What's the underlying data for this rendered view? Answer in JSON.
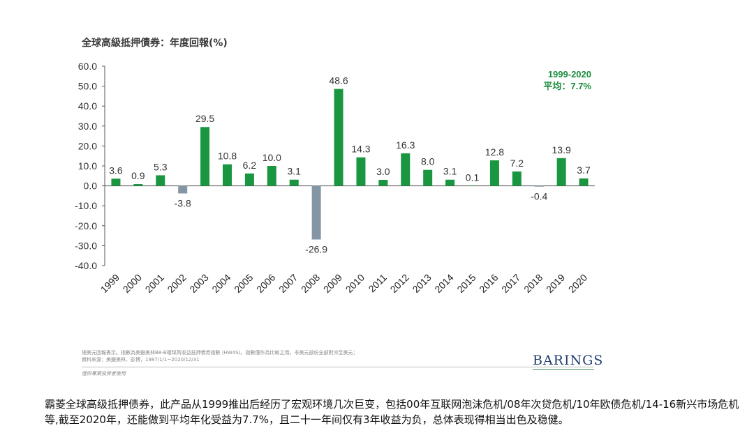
{
  "title": "全球高級抵押債券：年度回報(%)",
  "chart_data": {
    "type": "bar",
    "title": "全球高級抵押債券：年度回報(%)",
    "xlabel": "",
    "ylabel": "",
    "ylim": [
      -40,
      60
    ],
    "yticks": [
      "60.0",
      "50.0",
      "40.0",
      "30.0",
      "20.0",
      "10.0",
      "0.0",
      "-10.0",
      "-20.0",
      "-30.0",
      "-40.0"
    ],
    "ytick_values": [
      60,
      50,
      40,
      30,
      20,
      10,
      0,
      -10,
      -20,
      -30,
      -40
    ],
    "categories": [
      "1999",
      "2000",
      "2001",
      "2002",
      "2003",
      "2004",
      "2005",
      "2006",
      "2007",
      "2008",
      "2009",
      "2010",
      "2011",
      "2012",
      "2013",
      "2014",
      "2015",
      "2016",
      "2017",
      "2018",
      "2019",
      "2020"
    ],
    "values": [
      3.6,
      0.9,
      5.3,
      -3.8,
      29.5,
      10.8,
      6.2,
      10.0,
      3.1,
      -26.9,
      48.6,
      14.3,
      3.0,
      16.3,
      8.0,
      3.1,
      0.1,
      12.8,
      7.2,
      -0.4,
      13.9,
      3.7
    ],
    "value_labels": [
      "3.6",
      "0.9",
      "5.3",
      "-3.8",
      "29.5",
      "10.8",
      "6.2",
      "10.0",
      "3.1",
      "-26.9",
      "48.6",
      "14.3",
      "3.0",
      "16.3",
      "8.0",
      "3.1",
      "0.1",
      "12.8",
      "7.2",
      "-0.4",
      "13.9",
      "3.7"
    ],
    "colors": {
      "positive": "#1a9641",
      "negative": "#8496a6"
    },
    "annotation": {
      "period": "1999-2020",
      "average": "平均：7.7%",
      "color": "#1a8c3c"
    },
    "grid": false,
    "legend": "none"
  },
  "footnote": {
    "line1": "總美元回報表示。指數為美銀美林BB-B環球高收益抵押債券指數 (HW4S)。指數僅作為比較之用。非美元部份全部對沖至美元；",
    "line2": "資料來源：美銀美林、彭博，1987/1/1~2020/12/31"
  },
  "disclaimer": "僅供專業投資者使用",
  "logo": "BARINGS",
  "caption": "霸菱全球高级抵押债券，此产品从1999推出后经历了宏观环境几次巨变，包括00年互联网泡沫危机/08年次贷危机/10年欧债危机/14-16新兴市场危机等,截至2020年，还能做到平均年化受益为7.7%，且二十一年间仅有3年收益为负，总体表现得相当出色及稳健。"
}
